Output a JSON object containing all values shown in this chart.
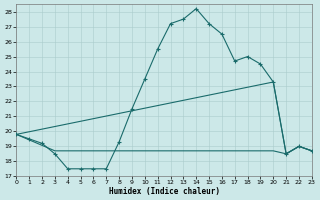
{
  "xlabel": "Humidex (Indice chaleur)",
  "xlim": [
    0,
    23
  ],
  "ylim": [
    17,
    28.5
  ],
  "yticks": [
    17,
    18,
    19,
    20,
    21,
    22,
    23,
    24,
    25,
    26,
    27,
    28
  ],
  "xticks": [
    0,
    1,
    2,
    3,
    4,
    5,
    6,
    7,
    8,
    9,
    10,
    11,
    12,
    13,
    14,
    15,
    16,
    17,
    18,
    19,
    20,
    21,
    22,
    23
  ],
  "bg_color": "#cce8e8",
  "grid_color": "#aacccc",
  "line_color": "#1a6b6b",
  "line1_x": [
    0,
    1,
    2,
    3,
    4,
    5,
    6,
    7,
    8,
    9,
    10,
    11,
    12,
    13,
    14,
    15,
    16,
    17,
    18,
    19,
    20,
    21,
    22,
    23
  ],
  "line1_y": [
    19.8,
    19.5,
    19.2,
    18.5,
    17.5,
    17.5,
    17.5,
    17.5,
    19.3,
    21.5,
    23.5,
    25.5,
    27.2,
    27.5,
    28.2,
    27.2,
    26.5,
    24.7,
    25.0,
    24.5,
    23.3,
    18.5,
    19.0,
    18.7
  ],
  "line2_x": [
    0,
    20,
    21,
    22,
    23
  ],
  "line2_y": [
    19.8,
    23.3,
    18.5,
    19.0,
    18.7
  ],
  "line3_x": [
    0,
    3,
    20,
    21,
    22,
    23
  ],
  "line3_y": [
    19.8,
    18.7,
    18.7,
    18.5,
    19.0,
    18.7
  ]
}
